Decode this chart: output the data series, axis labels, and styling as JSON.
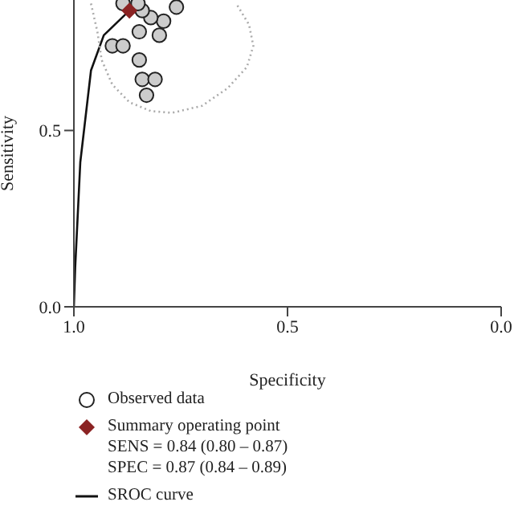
{
  "chart_data": {
    "type": "scatter",
    "xlabel": "Specificity",
    "ylabel": "Sensitivity",
    "xlim": [
      1,
      0
    ],
    "ylim": [
      0,
      0.87
    ],
    "xticks": [
      {
        "value": 1,
        "label": "1.0"
      },
      {
        "value": 0.5,
        "label": "0.5"
      },
      {
        "value": 0,
        "label": "0.0"
      }
    ],
    "yticks": [
      {
        "value": 0,
        "label": "0.0"
      },
      {
        "value": 0.5,
        "label": "0.5"
      }
    ],
    "legend": "bottom",
    "grid": false,
    "annotations": [
      "SENS = 0.84 (0.80 – 0.87)",
      "SPEC = 0.87 (0.84 – 0.89)"
    ],
    "series": [
      {
        "name": "Observed data",
        "color": "#cccccc",
        "marker": "circle",
        "x": [
          0.91,
          0.885,
          0.847,
          0.84,
          0.81,
          0.83,
          0.847,
          0.8,
          0.79,
          0.76,
          0.82,
          0.84,
          0.85,
          0.885
        ],
        "values": [
          0.74,
          0.74,
          0.7,
          0.645,
          0.645,
          0.6,
          0.78,
          0.77,
          0.81,
          0.85,
          0.82,
          0.84,
          0.86,
          0.86
        ]
      },
      {
        "name": "Summary operating point",
        "color": "#8b2323",
        "marker": "diamond",
        "x": [
          0.87
        ],
        "values": [
          0.84
        ]
      },
      {
        "type": "line",
        "name": "SROC curve",
        "color": "#111111",
        "line_style": "solid",
        "marker": "none",
        "x": [
          1,
          0.997,
          0.991,
          0.985,
          0.96,
          0.93,
          0.87
        ],
        "values": [
          0,
          0.11,
          0.26,
          0.41,
          0.67,
          0.77,
          0.84
        ]
      },
      {
        "type": "line",
        "color": "#aaaaaa",
        "line_style": "dotted",
        "marker": "none",
        "x": [
          0.96,
          0.945,
          0.935,
          0.91,
          0.87,
          0.82,
          0.77,
          0.7,
          0.64,
          0.595,
          0.58,
          0.59,
          0.62
        ],
        "values": [
          0.86,
          0.78,
          0.7,
          0.63,
          0.58,
          0.555,
          0.55,
          0.57,
          0.62,
          0.68,
          0.74,
          0.8,
          0.86
        ]
      }
    ]
  }
}
